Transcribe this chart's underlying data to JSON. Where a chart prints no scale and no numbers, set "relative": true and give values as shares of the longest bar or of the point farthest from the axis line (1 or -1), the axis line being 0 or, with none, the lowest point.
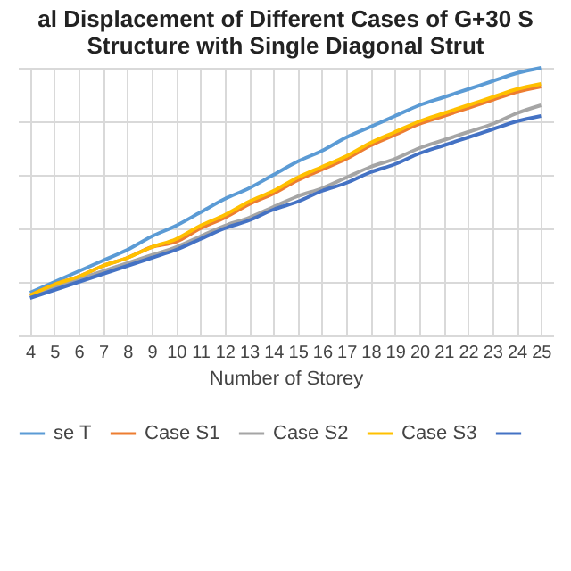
{
  "chart_data": {
    "type": "line",
    "title": [
      "al Displacement of Different Cases of G+30 S",
      "Structure with Single Diagonal Strut"
    ],
    "xlabel": "Number of Storey",
    "relative": true,
    "grid": true,
    "legend": "bottom",
    "categories": [
      "4",
      "5",
      "6",
      "7",
      "8",
      "9",
      "10",
      "11",
      "12",
      "13",
      "14",
      "15",
      "16",
      "17",
      "18",
      "19",
      "20",
      "21",
      "22",
      "23",
      "24",
      "25"
    ],
    "series": [
      {
        "name": "se T",
        "color": "#5b9bd5",
        "values": [
          0.16,
          0.2,
          0.24,
          0.28,
          0.32,
          0.37,
          0.41,
          0.46,
          0.51,
          0.55,
          0.6,
          0.65,
          0.69,
          0.74,
          0.78,
          0.82,
          0.86,
          0.89,
          0.92,
          0.95,
          0.98,
          1
        ]
      },
      {
        "name": "Case S1",
        "color": "#ed7d31",
        "values": [
          0.15,
          0.19,
          0.22,
          0.26,
          0.29,
          0.33,
          0.35,
          0.4,
          0.44,
          0.49,
          0.53,
          0.58,
          0.62,
          0.66,
          0.71,
          0.75,
          0.79,
          0.82,
          0.85,
          0.88,
          0.91,
          0.93
        ]
      },
      {
        "name": "Case S2",
        "color": "#a5a5a5",
        "values": [
          0.15,
          0.18,
          0.21,
          0.24,
          0.27,
          0.3,
          0.33,
          0.37,
          0.41,
          0.44,
          0.48,
          0.52,
          0.55,
          0.59,
          0.63,
          0.66,
          0.7,
          0.73,
          0.76,
          0.79,
          0.83,
          0.86
        ]
      },
      {
        "name": "Case S3",
        "color": "#ffc000",
        "values": [
          0.15,
          0.19,
          0.22,
          0.26,
          0.29,
          0.33,
          0.36,
          0.41,
          0.45,
          0.5,
          0.54,
          0.59,
          0.63,
          0.67,
          0.72,
          0.76,
          0.8,
          0.83,
          0.86,
          0.89,
          0.92,
          0.94
        ]
      },
      {
        "color": "#4472c4",
        "values": [
          0.14,
          0.17,
          0.2,
          0.23,
          0.26,
          0.29,
          0.32,
          0.36,
          0.4,
          0.43,
          0.47,
          0.5,
          0.54,
          0.57,
          0.61,
          0.64,
          0.68,
          0.71,
          0.74,
          0.77,
          0.8,
          0.82
        ]
      }
    ]
  }
}
